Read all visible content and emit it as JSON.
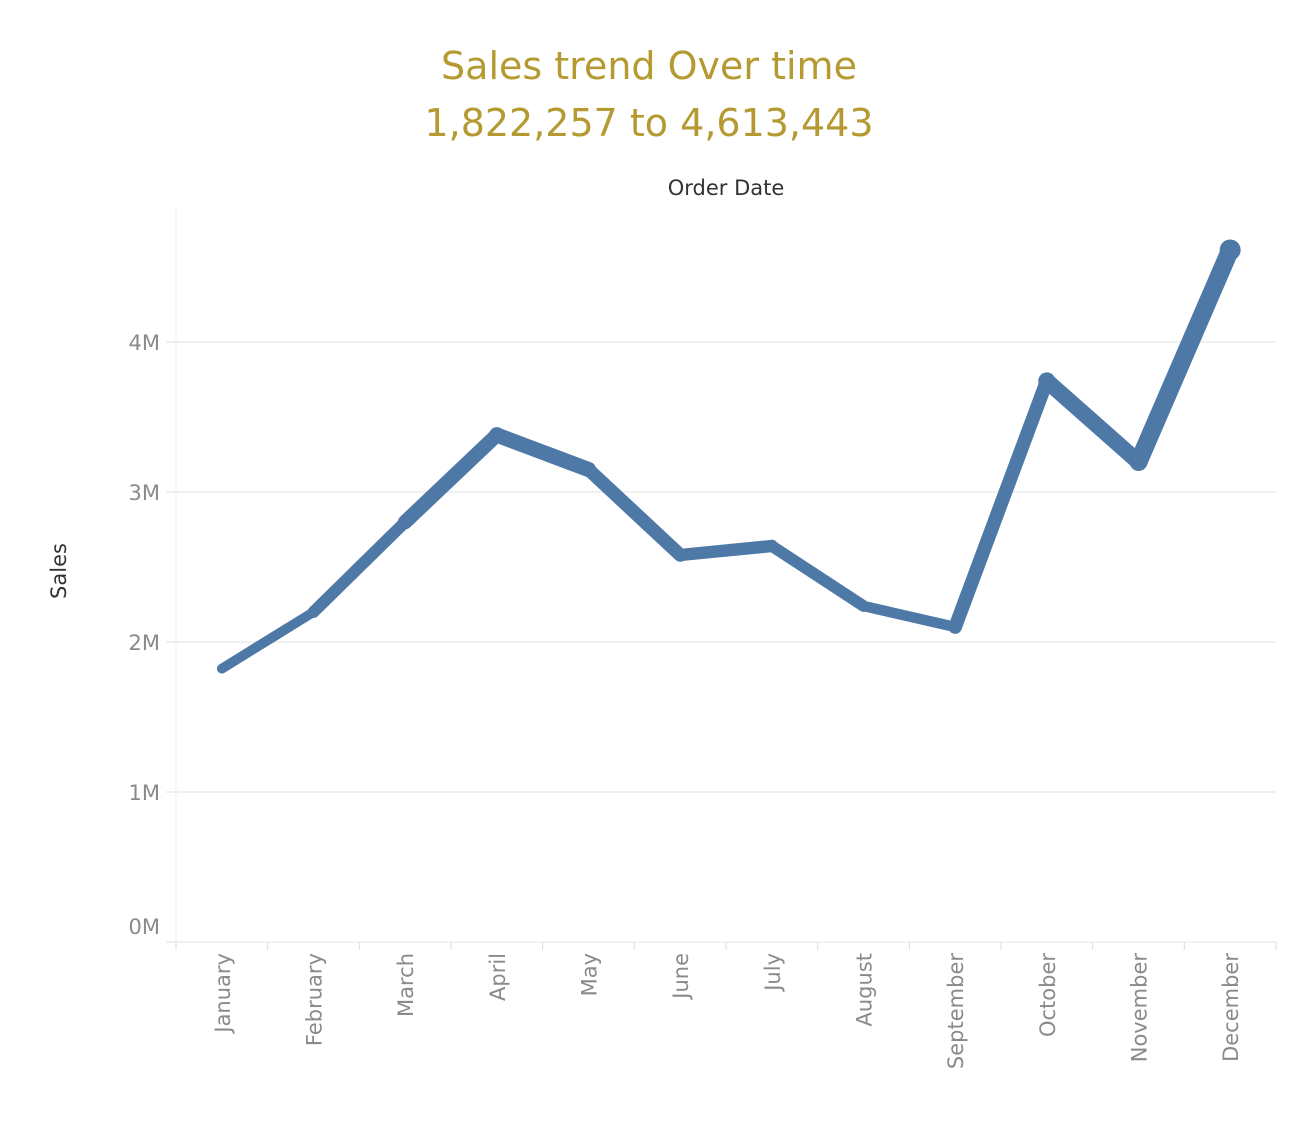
{
  "chart_data": {
    "type": "line",
    "title": "Sales trend Over time",
    "subtitle": "1,822,257 to 4,613,443",
    "xlabel": "Order Date",
    "ylabel": "Sales",
    "categories": [
      "January",
      "February",
      "March",
      "April",
      "May",
      "June",
      "July",
      "August",
      "September",
      "October",
      "November",
      "December"
    ],
    "series": [
      {
        "values": [
          1822257,
          2200000,
          2800000,
          3380000,
          3150000,
          2580000,
          2640000,
          2240000,
          2100000,
          3740000,
          3200000,
          4613443
        ]
      }
    ],
    "ylim": [
      0,
      4800000
    ],
    "yticks": [
      {
        "value": 0,
        "label": "0M"
      },
      {
        "value": 1000000,
        "label": "1M"
      },
      {
        "value": 2000000,
        "label": "2M"
      },
      {
        "value": 3000000,
        "label": "3M"
      },
      {
        "value": 4000000,
        "label": "4M"
      }
    ],
    "grid": true,
    "line_color": "#4e79a7",
    "title_color": "#b49a30"
  }
}
